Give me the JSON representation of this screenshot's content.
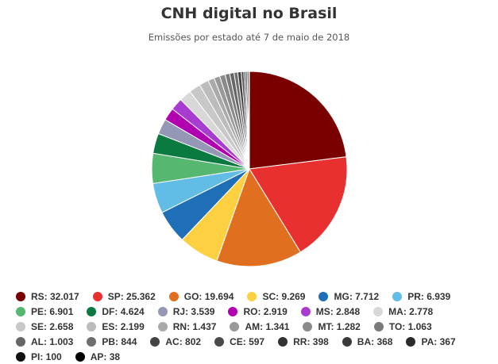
{
  "chart_data": {
    "type": "pie",
    "title": "CNH digital no Brasil",
    "subtitle": "Emissões por estado até 7 de maio de 2018",
    "legend_position": "bottom",
    "slices": [
      {
        "label": "RS",
        "value": 32017,
        "display": "32.017",
        "color": "#7a0000"
      },
      {
        "label": "SP",
        "value": 25362,
        "display": "25.362",
        "color": "#e83030"
      },
      {
        "label": "GO",
        "value": 19694,
        "display": "19.694",
        "color": "#e07020"
      },
      {
        "label": "SC",
        "value": 9269,
        "display": "9.269",
        "color": "#fcd040"
      },
      {
        "label": "MG",
        "value": 7712,
        "display": "7.712",
        "color": "#1f6fb8"
      },
      {
        "label": "PR",
        "value": 6939,
        "display": "6.939",
        "color": "#62bde6"
      },
      {
        "label": "PE",
        "value": 6901,
        "display": "6.901",
        "color": "#56b870"
      },
      {
        "label": "DF",
        "value": 4624,
        "display": "4.624",
        "color": "#0a7a40"
      },
      {
        "label": "RJ",
        "value": 3539,
        "display": "3.539",
        "color": "#9497b5"
      },
      {
        "label": "RO",
        "value": 2919,
        "display": "2.919",
        "color": "#b000b0"
      },
      {
        "label": "MS",
        "value": 2848,
        "display": "2.848",
        "color": "#a83cd0"
      },
      {
        "label": "MA",
        "value": 2778,
        "display": "2.778",
        "color": "#d8d8d8"
      },
      {
        "label": "SE",
        "value": 2658,
        "display": "2.658",
        "color": "#c8c8c8"
      },
      {
        "label": "ES",
        "value": 2199,
        "display": "2.199",
        "color": "#bcbcbc"
      },
      {
        "label": "RN",
        "value": 1437,
        "display": "1.437",
        "color": "#aaaaaa"
      },
      {
        "label": "AM",
        "value": 1341,
        "display": "1.341",
        "color": "#999999"
      },
      {
        "label": "MT",
        "value": 1282,
        "display": "1.282",
        "color": "#8a8a8a"
      },
      {
        "label": "TO",
        "value": 1063,
        "display": "1.063",
        "color": "#7a7a7a"
      },
      {
        "label": "AL",
        "value": 1003,
        "display": "1.003",
        "color": "#666666"
      },
      {
        "label": "PB",
        "value": 844,
        "display": "844",
        "color": "#6e6e6e"
      },
      {
        "label": "AC",
        "value": 802,
        "display": "802",
        "color": "#444444"
      },
      {
        "label": "CE",
        "value": 597,
        "display": "597",
        "color": "#4a4a4a"
      },
      {
        "label": "RR",
        "value": 398,
        "display": "398",
        "color": "#333333"
      },
      {
        "label": "BA",
        "value": 368,
        "display": "368",
        "color": "#3a3a3a"
      },
      {
        "label": "PA",
        "value": 367,
        "display": "367",
        "color": "#2a2a2a"
      },
      {
        "label": "PI",
        "value": 100,
        "display": "100",
        "color": "#111111"
      },
      {
        "label": "AP",
        "value": 38,
        "display": "38",
        "color": "#000000"
      }
    ]
  }
}
